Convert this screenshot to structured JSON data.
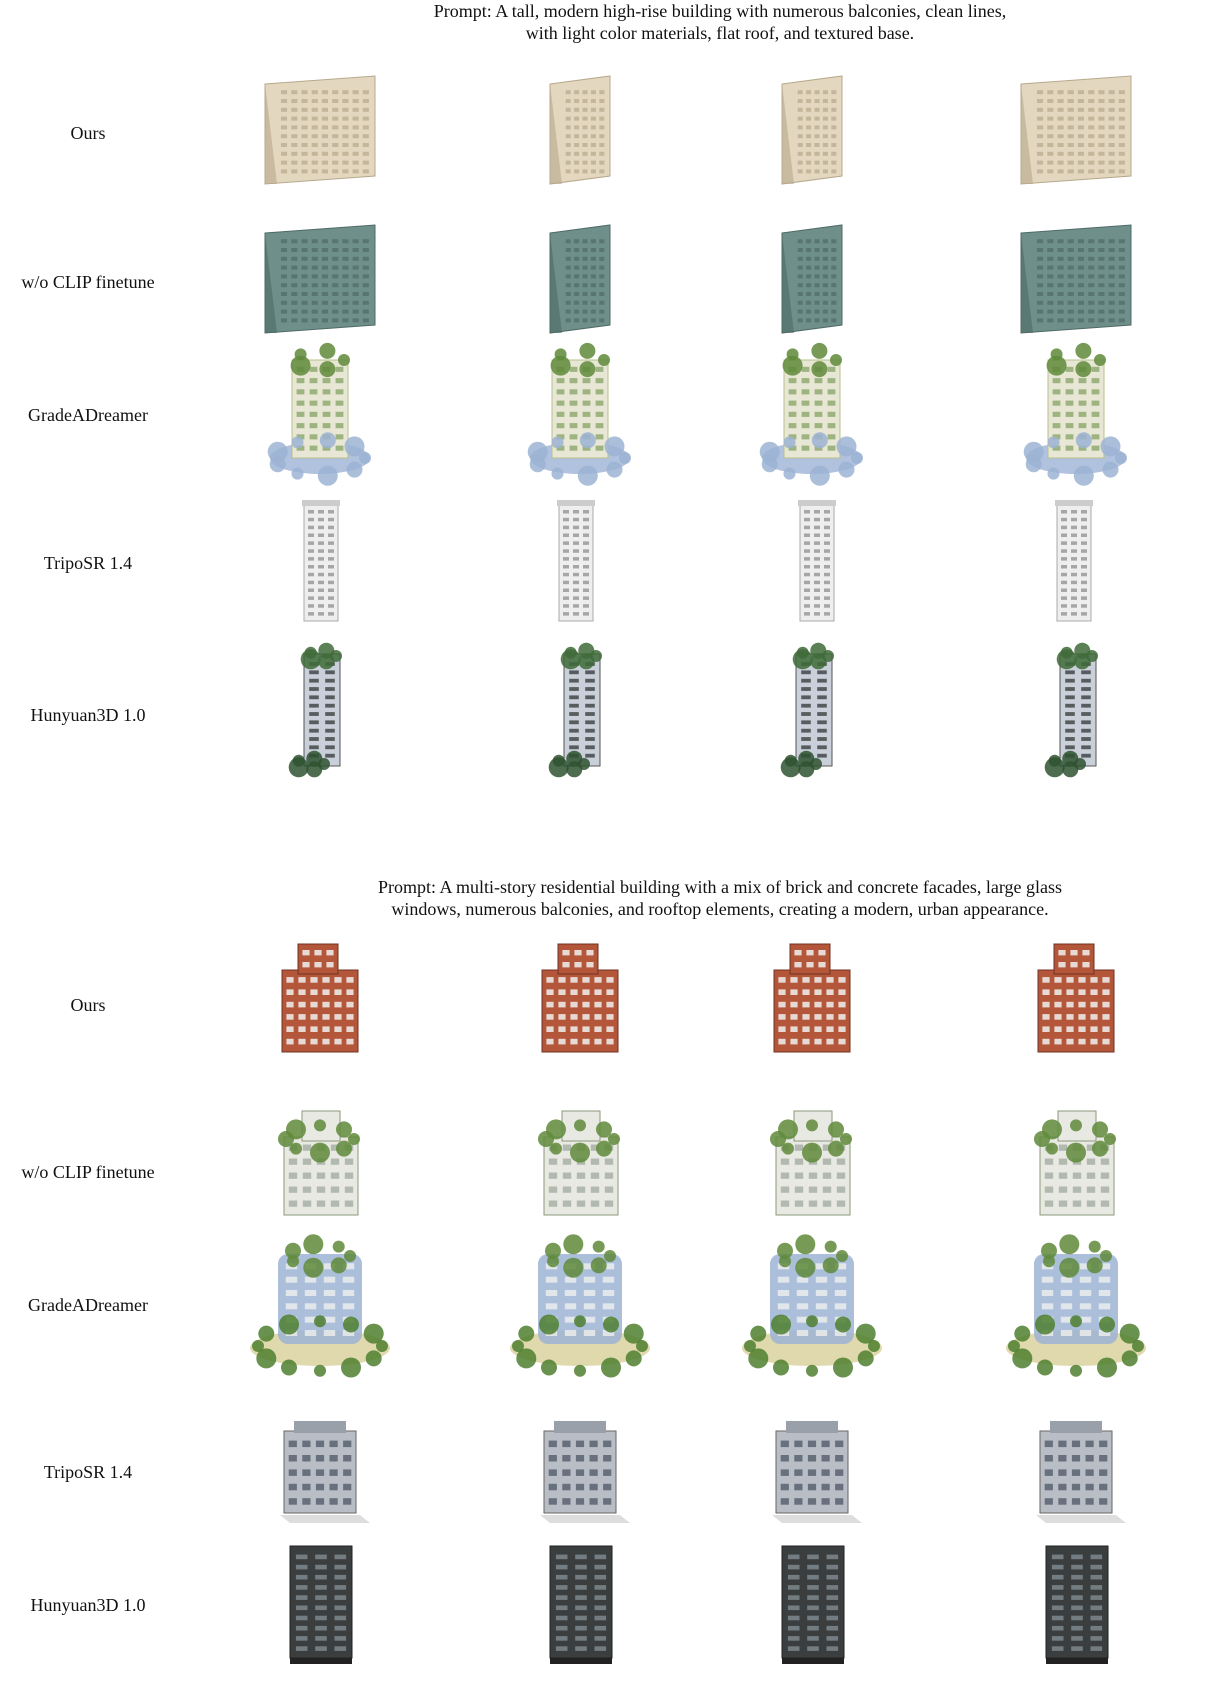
{
  "figure": {
    "sections": [
      {
        "prompt_lines": [
          "Prompt: A tall, modern high-rise building with numerous balconies, clean lines,",
          "with light color materials, flat roof, and textured base."
        ],
        "rows": [
          {
            "label": "Ours",
            "style": "beige-slab",
            "views": 4
          },
          {
            "label": "w/o CLIP finetune",
            "style": "teal-slab",
            "views": 4
          },
          {
            "label": "GradeADreamer",
            "style": "green-tower-blue-base",
            "views": 4
          },
          {
            "label": "TripoSR 1.4",
            "style": "white-tower",
            "views": 4
          },
          {
            "label": "Hunyuan3D 1.0",
            "style": "dark-tower-green-top",
            "views": 4
          }
        ]
      },
      {
        "prompt_lines": [
          "Prompt: A multi-story residential building with a mix of brick and concrete facades, large glass",
          "windows, numerous balconies, and rooftop elements, creating a modern, urban appearance."
        ],
        "rows": [
          {
            "label": "Ours",
            "style": "brick-block",
            "views": 4
          },
          {
            "label": "w/o CLIP finetune",
            "style": "white-green-block",
            "views": 4
          },
          {
            "label": "GradeADreamer",
            "style": "green-blob-block",
            "views": 4
          },
          {
            "label": "TripoSR 1.4",
            "style": "grey-block",
            "views": 4
          },
          {
            "label": "Hunyuan3D 1.0",
            "style": "black-block",
            "views": 4
          }
        ]
      }
    ],
    "colors": {
      "beige": "#e3d7bf",
      "teal": "#6f8f8a",
      "white": "#eeeeee",
      "brick": "#b4563a",
      "green": "#5f8a3a",
      "blue": "#9cb3d4",
      "dark": "#3b3e3f"
    }
  }
}
